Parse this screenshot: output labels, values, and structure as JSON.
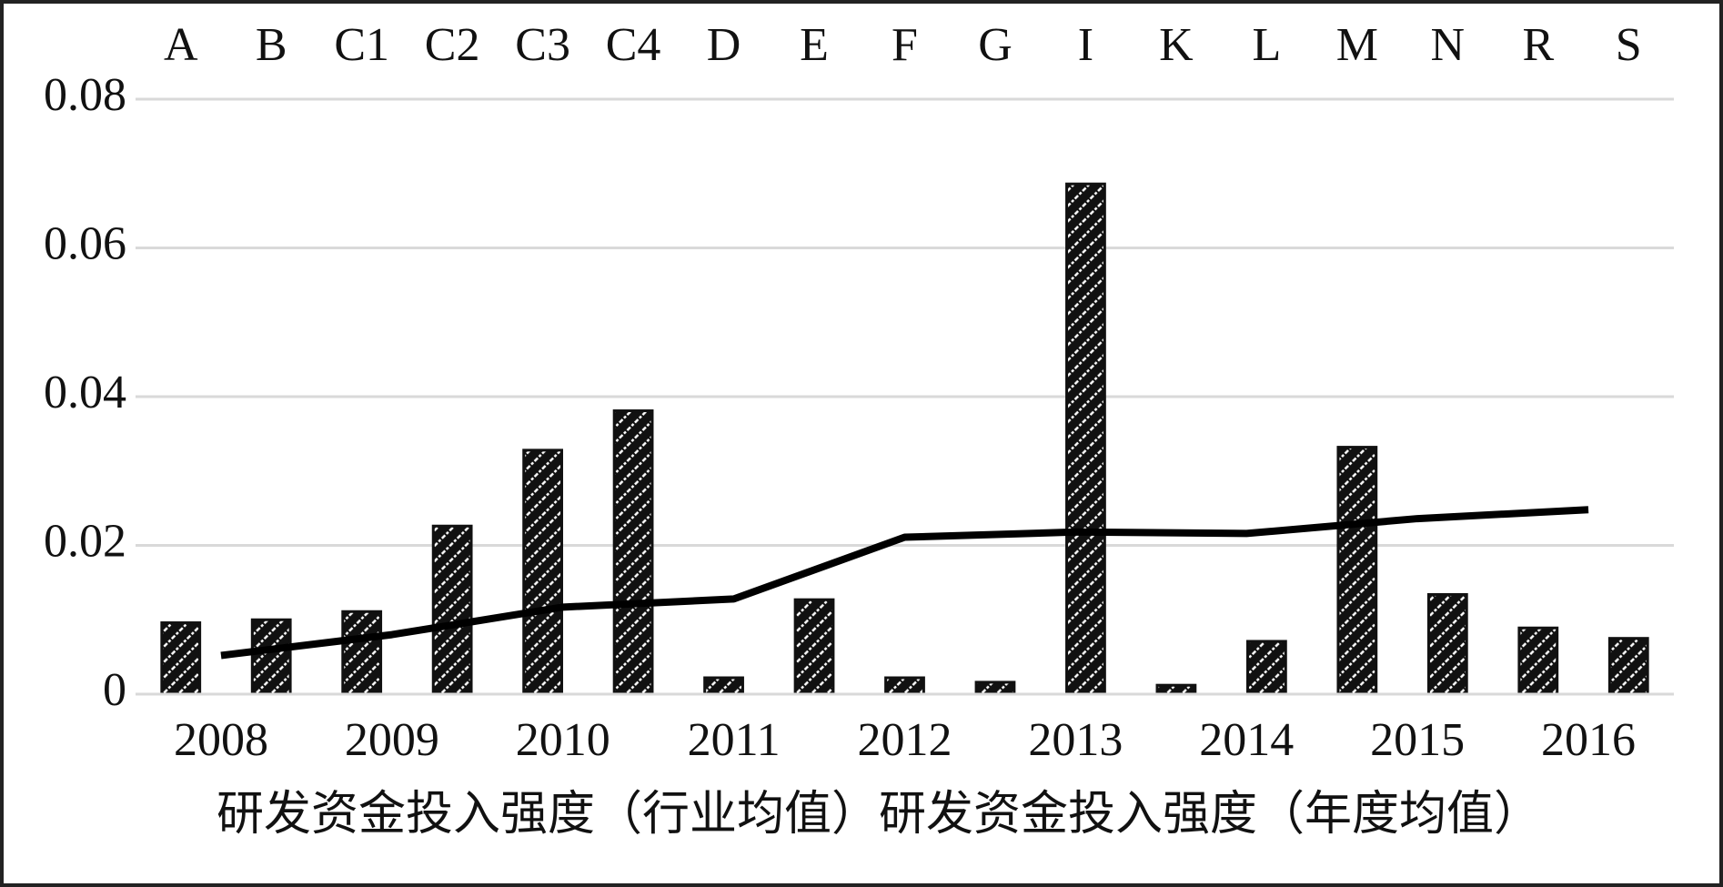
{
  "chart_data": [
    {
      "type": "bar",
      "x_axis_position": "top",
      "categories": [
        "A",
        "B",
        "C1",
        "C2",
        "C3",
        "C4",
        "D",
        "E",
        "F",
        "G",
        "I",
        "K",
        "L",
        "M",
        "N",
        "R",
        "S"
      ],
      "series": [
        {
          "name": "研发资金投入强度（行业均值）",
          "color": "#111111",
          "values": [
            0.0096,
            0.01,
            0.0111,
            0.0226,
            0.0328,
            0.0381,
            0.0022,
            0.0127,
            0.0022,
            0.0016,
            0.0686,
            0.0012,
            0.0071,
            0.0332,
            0.0134,
            0.0089,
            0.0075
          ]
        }
      ],
      "ylim": [
        0,
        0.08
      ],
      "yticks": [
        {
          "value": 0,
          "label": "0"
        },
        {
          "value": 0.02,
          "label": "0.02"
        },
        {
          "value": 0.04,
          "label": "0.04"
        },
        {
          "value": 0.06,
          "label": "0.06"
        },
        {
          "value": 0.08,
          "label": "0.08"
        }
      ],
      "grid": true
    },
    {
      "type": "line",
      "x_axis_position": "bottom",
      "categories": [
        "2008",
        "2009",
        "2010",
        "2011",
        "2012",
        "2013",
        "2014",
        "2015",
        "2016"
      ],
      "series": [
        {
          "name": "研发资金投入强度（年度均值）",
          "color": "#000000",
          "values": [
            0.0052,
            0.008,
            0.0117,
            0.0128,
            0.0211,
            0.0218,
            0.0216,
            0.0236,
            0.0248
          ]
        }
      ],
      "ylim": [
        0,
        0.08
      ]
    }
  ]
}
